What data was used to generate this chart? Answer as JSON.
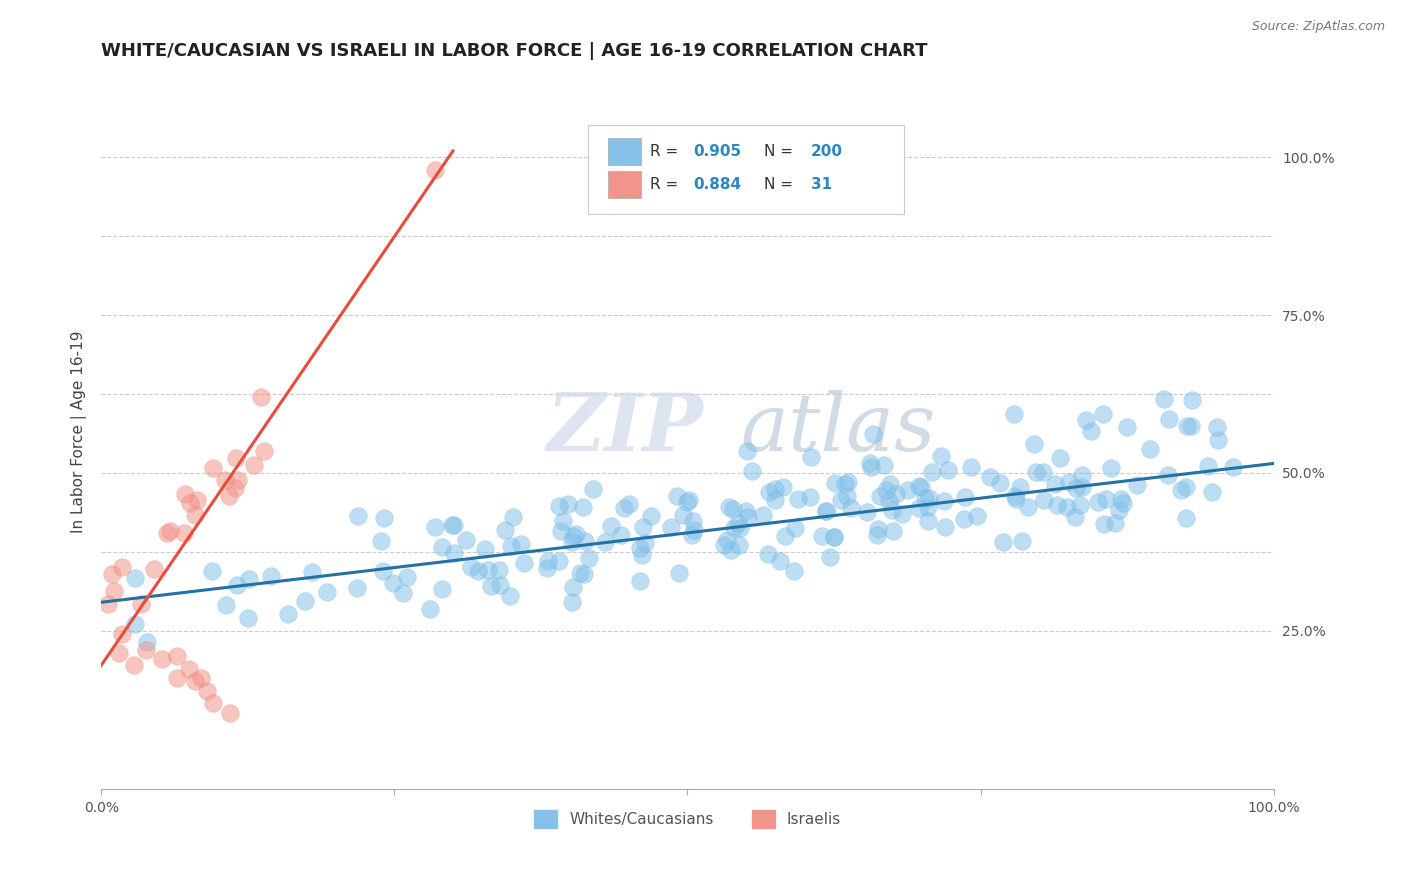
{
  "title": "WHITE/CAUCASIAN VS ISRAELI IN LABOR FORCE | AGE 16-19 CORRELATION CHART",
  "source": "Source: ZipAtlas.com",
  "ylabel": "In Labor Force | Age 16-19",
  "watermark_zip": "ZIP",
  "watermark_atlas": "atlas",
  "r_white": 0.905,
  "n_white": 200,
  "r_israeli": 0.884,
  "n_israeli": 31,
  "blue_color": "#85c1e9",
  "blue_edge_color": "#5dade2",
  "pink_color": "#f1948a",
  "pink_edge_color": "#ec7063",
  "blue_line_color": "#2471a3",
  "pink_line_color": "#e74c3c",
  "grid_color": "#cccccc",
  "background_color": "#ffffff",
  "legend_r_color": "#2e86c1",
  "title_fontsize": 13,
  "axis_label_fontsize": 11,
  "tick_fontsize": 10,
  "white_seed": 42,
  "israeli_seed": 99
}
